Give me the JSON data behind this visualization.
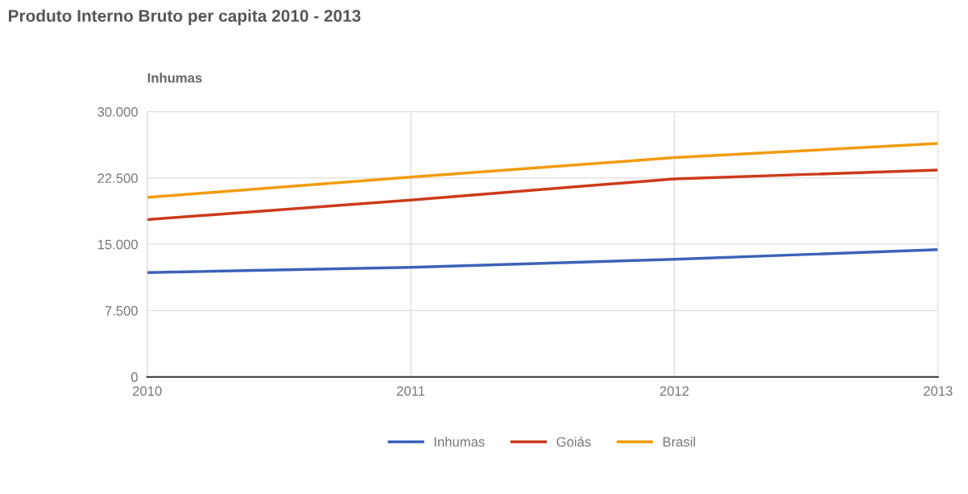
{
  "chart_data": {
    "type": "line",
    "title": "Produto Interno Bruto per capita 2010 - 2013",
    "subtitle": "Inhumas",
    "x": [
      2010,
      2011,
      2012,
      2013
    ],
    "series": [
      {
        "name": "Inhumas",
        "color": "#3c62b8",
        "values": [
          11800,
          12400,
          13300,
          14400
        ]
      },
      {
        "name": "Goiás",
        "color": "#cc3a1a",
        "values": [
          17800,
          20000,
          22400,
          23400
        ]
      },
      {
        "name": "Brasil",
        "color": "#f29b0c",
        "values": [
          20300,
          22600,
          24800,
          26400
        ]
      }
    ],
    "xlim": [
      2010,
      2013
    ],
    "xticks": [
      2010,
      2011,
      2012,
      2013
    ],
    "ylim": [
      0,
      30000
    ],
    "yticks": [
      {
        "value": 0,
        "label": "0"
      },
      {
        "value": 7500,
        "label": "7.500"
      },
      {
        "value": 15000,
        "label": "15.000"
      },
      {
        "value": 22500,
        "label": "22.500"
      },
      {
        "value": 30000,
        "label": "30.000"
      }
    ],
    "grid": true,
    "legend": "bottom",
    "marker": "none",
    "line_style": "solid"
  }
}
